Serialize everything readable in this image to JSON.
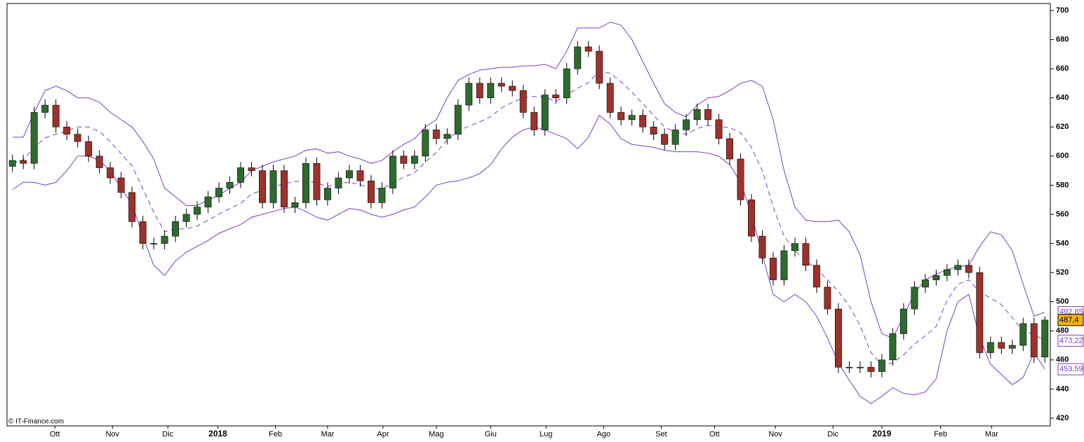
{
  "chart_data": {
    "type": "candlestick",
    "credit": "© IT-Finance.com",
    "xlim": [
      -0.5,
      95.5
    ],
    "xticks": [
      {
        "value": 3.9,
        "label": "Ott"
      },
      {
        "value": 9.2,
        "label": "Nov"
      },
      {
        "value": 14.3,
        "label": "Dic"
      },
      {
        "value": 18.9,
        "label": "2018"
      },
      {
        "value": 24.2,
        "label": "Feb"
      },
      {
        "value": 29.0,
        "label": "Mar"
      },
      {
        "value": 34.1,
        "label": "Apr"
      },
      {
        "value": 39.0,
        "label": "Mag"
      },
      {
        "value": 44.0,
        "label": "Giu"
      },
      {
        "value": 49.1,
        "label": "Lug"
      },
      {
        "value": 54.4,
        "label": "Ago"
      },
      {
        "value": 59.7,
        "label": "Set"
      },
      {
        "value": 64.6,
        "label": "Ott"
      },
      {
        "value": 70.2,
        "label": "Nov"
      },
      {
        "value": 75.5,
        "label": "Dic"
      },
      {
        "value": 80.0,
        "label": "2019"
      },
      {
        "value": 85.4,
        "label": "Feb"
      },
      {
        "value": 90.1,
        "label": "Mar"
      }
    ],
    "ylim": [
      414.7,
      704.8
    ],
    "yticks": [
      420,
      440,
      460,
      480,
      500,
      520,
      540,
      560,
      580,
      600,
      620,
      640,
      660,
      680,
      700
    ],
    "up_color": "#2e6b2e",
    "down_color": "#a0302a",
    "open": [
      593,
      597,
      595,
      630,
      635,
      620,
      615,
      610,
      600,
      592,
      585,
      575,
      555,
      540,
      540,
      545,
      555,
      560,
      565,
      572,
      578,
      582,
      592,
      590,
      568,
      590,
      565,
      568,
      595,
      570,
      578,
      585,
      590,
      583,
      568,
      578,
      600,
      595,
      600,
      618,
      612,
      615,
      635,
      650,
      640,
      650,
      648,
      645,
      630,
      618,
      642,
      640,
      660,
      675,
      672,
      650,
      630,
      625,
      628,
      620,
      615,
      608,
      618,
      625,
      632,
      625,
      612,
      598,
      570,
      545,
      530,
      515,
      535,
      540,
      525,
      510,
      495,
      455,
      455,
      455,
      452,
      460,
      478,
      495,
      510,
      515,
      518,
      522,
      525,
      520,
      465,
      472,
      468,
      470,
      485,
      462
    ],
    "high": [
      601,
      601,
      634,
      639,
      639,
      624,
      619,
      614,
      604,
      596,
      589,
      579,
      559,
      544,
      549,
      559,
      564,
      569,
      576,
      582,
      586,
      596,
      596,
      594,
      594,
      594,
      572,
      599,
      599,
      582,
      589,
      594,
      594,
      587,
      582,
      604,
      604,
      604,
      622,
      622,
      619,
      639,
      654,
      654,
      654,
      654,
      652,
      649,
      634,
      646,
      646,
      664,
      679,
      679,
      676,
      654,
      634,
      632,
      632,
      624,
      619,
      622,
      629,
      636,
      636,
      629,
      616,
      602,
      574,
      549,
      534,
      539,
      544,
      544,
      529,
      514,
      499,
      459,
      459,
      459,
      464,
      482,
      499,
      514,
      519,
      522,
      526,
      529,
      529,
      524,
      476,
      476,
      474,
      489,
      489,
      490
    ],
    "low": [
      589,
      591,
      591,
      626,
      616,
      611,
      606,
      596,
      588,
      581,
      571,
      551,
      536,
      536,
      536,
      541,
      551,
      556,
      561,
      568,
      574,
      578,
      586,
      564,
      564,
      561,
      561,
      564,
      566,
      566,
      574,
      581,
      579,
      564,
      564,
      574,
      591,
      591,
      596,
      608,
      608,
      611,
      631,
      636,
      636,
      644,
      641,
      626,
      614,
      614,
      636,
      636,
      656,
      668,
      646,
      626,
      621,
      621,
      616,
      611,
      604,
      604,
      614,
      621,
      621,
      608,
      594,
      566,
      541,
      526,
      511,
      511,
      531,
      521,
      506,
      491,
      451,
      451,
      451,
      448,
      448,
      456,
      474,
      491,
      506,
      511,
      514,
      518,
      516,
      461,
      461,
      464,
      464,
      466,
      458,
      458
    ],
    "close": [
      597,
      595,
      630,
      635,
      620,
      615,
      610,
      600,
      592,
      585,
      575,
      555,
      540,
      540,
      545,
      555,
      560,
      565,
      572,
      578,
      582,
      592,
      590,
      568,
      590,
      565,
      568,
      595,
      570,
      578,
      585,
      590,
      583,
      568,
      578,
      600,
      595,
      600,
      618,
      612,
      615,
      635,
      650,
      640,
      650,
      648,
      645,
      630,
      618,
      642,
      640,
      660,
      675,
      672,
      650,
      630,
      625,
      628,
      620,
      615,
      608,
      618,
      625,
      632,
      625,
      612,
      598,
      570,
      545,
      530,
      515,
      535,
      540,
      525,
      510,
      495,
      455,
      455,
      455,
      452,
      460,
      478,
      495,
      510,
      515,
      518,
      522,
      525,
      520,
      465,
      472,
      468,
      470,
      485,
      462,
      487.4
    ],
    "series": [
      {
        "color": "#7a3cc4",
        "dash": false,
        "values": [
          613,
          613,
          630,
          645,
          648,
          645,
          640,
          640,
          637,
          630,
          625,
          620,
          610,
          598,
          578,
          572,
          566,
          566,
          570,
          573,
          578,
          582,
          590,
          593,
          596,
          598,
          600,
          604,
          605,
          602,
          603,
          600,
          598,
          595,
          597,
          603,
          608,
          612,
          620,
          625,
          640,
          652,
          656,
          659,
          660,
          661,
          661,
          662,
          662,
          663,
          660,
          672,
          688,
          688,
          688,
          692,
          690,
          680,
          665,
          650,
          636,
          630,
          627,
          635,
          640,
          641,
          645,
          650,
          652,
          648,
          625,
          590,
          565,
          556,
          555,
          555,
          556,
          548,
          532,
          500,
          478,
          475,
          490,
          506,
          515,
          519,
          522,
          524,
          525,
          538,
          548,
          546,
          535,
          512,
          490,
          492.85
        ]
      },
      {
        "color": "#7a3cc4",
        "dash": true,
        "values": [
          595,
          597.5,
          606,
          612.5,
          615,
          617.5,
          620,
          620,
          617,
          610,
          601.5,
          593.5,
          577.5,
          561.5,
          548,
          550,
          550,
          552,
          556,
          560,
          564,
          567.5,
          574,
          576.5,
          579,
          581,
          582.5,
          583,
          581.5,
          579,
          581.5,
          582,
          580.5,
          577.5,
          577.5,
          581.5,
          585.5,
          588.5,
          596,
          602.5,
          611,
          617.5,
          620.5,
          623.5,
          627,
          633,
          637,
          640,
          641,
          640.5,
          637.5,
          642,
          646.5,
          650.5,
          658,
          657,
          651,
          644,
          636,
          628,
          620,
          616.5,
          615,
          619,
          621,
          620.5,
          619.5,
          616,
          606,
          590,
          565,
          545,
          535,
          528,
          522.5,
          515,
          507,
          497,
          483.5,
          465,
          456.5,
          458,
          463.5,
          471,
          476.5,
          483,
          501,
          512,
          515,
          506.5,
          502.5,
          498,
          489,
          480,
          477.5,
          473.22
        ]
      },
      {
        "color": "#7a3cc4",
        "dash": false,
        "values": [
          577,
          582,
          582,
          580,
          582,
          590,
          600,
          600,
          597,
          590,
          578,
          567,
          545,
          525,
          518,
          528,
          534,
          538,
          542,
          547,
          550,
          553,
          558,
          560,
          562,
          564,
          565,
          562,
          558,
          556,
          560,
          564,
          563,
          560,
          558,
          560,
          563,
          565,
          572,
          580,
          582,
          583,
          585,
          588,
          594,
          605,
          613,
          618,
          620,
          618,
          615,
          612,
          605,
          613,
          628,
          622,
          612,
          608,
          607,
          606,
          604,
          603,
          603,
          603,
          602,
          600,
          594,
          582,
          560,
          532,
          505,
          500,
          505,
          500,
          490,
          475,
          458,
          446,
          435,
          430,
          435,
          441,
          437,
          436,
          438,
          447,
          480,
          500,
          505,
          475,
          457,
          450,
          443,
          448,
          465,
          453.59
        ]
      }
    ],
    "price_labels": [
      {
        "value": 492.85,
        "label": "492,85",
        "color": "#7a3cc4",
        "background": "#ffffff"
      },
      {
        "value": 487.4,
        "label": "487,4",
        "color": "#000000",
        "background": "#f5b400"
      },
      {
        "value": 473.22,
        "label": "473,22",
        "color": "#7a3cc4",
        "background": "#ffffff"
      },
      {
        "value": 453.59,
        "label": "453,59",
        "color": "#7a3cc4",
        "background": "#ffffff"
      }
    ]
  }
}
